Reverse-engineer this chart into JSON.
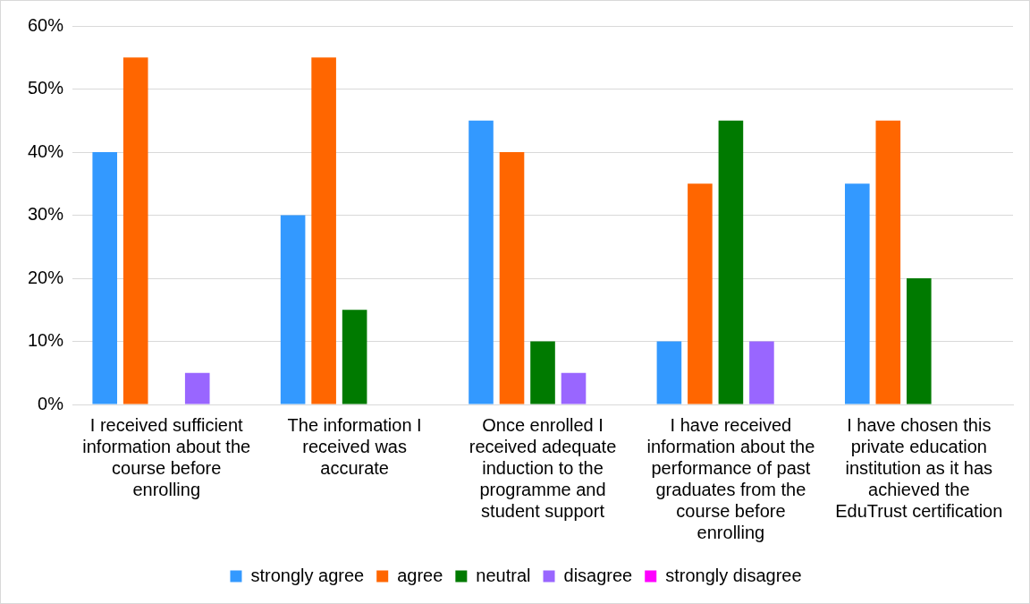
{
  "chart_data": {
    "type": "bar",
    "categories": [
      "I received sufficient information about the course before enrolling",
      "The information I received was accurate",
      "Once enrolled I received adequate induction to the programme and student support",
      "I have received information about the performance of past graduates from the course before enrolling",
      "I have chosen this private education institution as it has achieved the EduTrust certification"
    ],
    "series": [
      {
        "name": "strongly agree",
        "color": "#3399ff",
        "values": [
          40,
          30,
          45,
          10,
          35
        ]
      },
      {
        "name": "agree",
        "color": "#ff6600",
        "values": [
          55,
          55,
          40,
          35,
          45
        ]
      },
      {
        "name": "neutral",
        "color": "#007a00",
        "values": [
          0,
          15,
          10,
          45,
          20
        ]
      },
      {
        "name": "disagree",
        "color": "#9966ff",
        "values": [
          5,
          0,
          5,
          10,
          0
        ]
      },
      {
        "name": "strongly disagree",
        "color": "#ff00ff",
        "values": [
          0,
          0,
          0,
          0,
          0
        ]
      }
    ],
    "ylim": [
      0,
      60
    ],
    "yticks": [
      {
        "value": 0,
        "label": "0%"
      },
      {
        "value": 10,
        "label": "10%"
      },
      {
        "value": 20,
        "label": "20%"
      },
      {
        "value": 30,
        "label": "30%"
      },
      {
        "value": 40,
        "label": "40%"
      },
      {
        "value": 50,
        "label": "50%"
      },
      {
        "value": 60,
        "label": "60%"
      }
    ],
    "grid": "y",
    "legend": "bottom"
  }
}
